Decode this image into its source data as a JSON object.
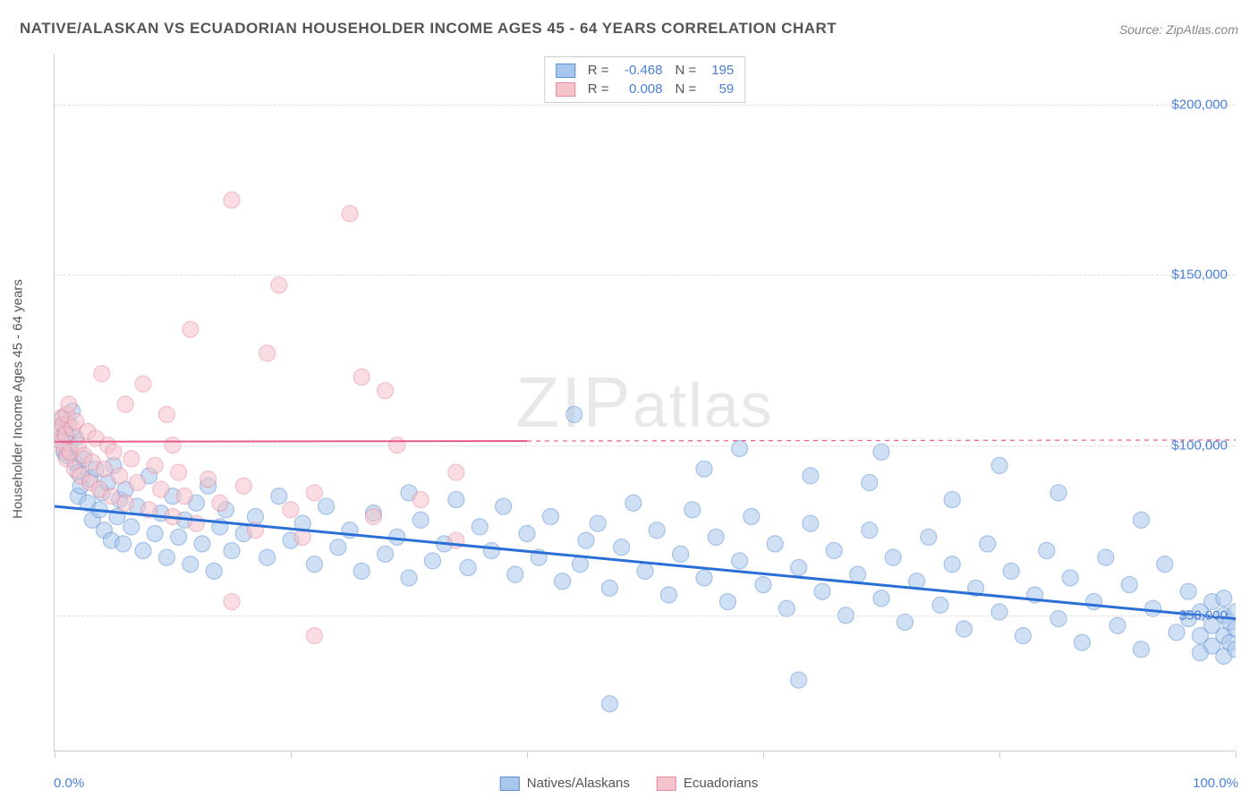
{
  "title": "NATIVE/ALASKAN VS ECUADORIAN HOUSEHOLDER INCOME AGES 45 - 64 YEARS CORRELATION CHART",
  "source": "Source: ZipAtlas.com",
  "watermark": "ZIPatlas",
  "chart": {
    "type": "scatter",
    "y_title": "Householder Income Ages 45 - 64 years",
    "xlim": [
      0,
      100
    ],
    "ylim": [
      10000,
      215000
    ],
    "x_ticks": [
      0,
      20,
      40,
      60,
      80,
      100
    ],
    "x_tick_labels": {
      "0": "0.0%",
      "100": "100.0%"
    },
    "y_ticks": [
      50000,
      100000,
      150000,
      200000
    ],
    "y_tick_labels": [
      "$50,000",
      "$100,000",
      "$150,000",
      "$200,000"
    ],
    "grid_color": "#dddddd",
    "background_color": "#ffffff",
    "axis_label_color": "#4a7fd8",
    "marker_radius": 9,
    "marker_opacity": 0.55,
    "series": [
      {
        "name": "Natives/Alaskans",
        "fill_color": "#a9c7ec",
        "stroke_color": "#5a8fd6",
        "trend": {
          "x1": 0,
          "y1": 82000,
          "x2": 100,
          "y2": 49000,
          "color": "#2a6fd6",
          "width": 3,
          "dash_after_x": 100
        },
        "stats": {
          "R": "-0.468",
          "N": "195"
        },
        "points": [
          [
            0.5,
            105000
          ],
          [
            0.6,
            101000
          ],
          [
            0.7,
            108000
          ],
          [
            0.8,
            98000
          ],
          [
            0.9,
            104000
          ],
          [
            1,
            97000
          ],
          [
            1,
            103000
          ],
          [
            1.1,
            99000
          ],
          [
            1.2,
            106000
          ],
          [
            1.3,
            100000
          ],
          [
            1.5,
            110000
          ],
          [
            1.7,
            95000
          ],
          [
            1.8,
            102000
          ],
          [
            2,
            92000
          ],
          [
            2,
            85000
          ],
          [
            2.2,
            88000
          ],
          [
            2.5,
            96000
          ],
          [
            2.8,
            83000
          ],
          [
            3,
            90000
          ],
          [
            3.2,
            78000
          ],
          [
            3.5,
            93000
          ],
          [
            3.8,
            81000
          ],
          [
            4,
            86000
          ],
          [
            4.2,
            75000
          ],
          [
            4.5,
            89000
          ],
          [
            4.8,
            72000
          ],
          [
            5,
            94000
          ],
          [
            5.3,
            79000
          ],
          [
            5.5,
            84000
          ],
          [
            5.8,
            71000
          ],
          [
            6,
            87000
          ],
          [
            6.5,
            76000
          ],
          [
            7,
            82000
          ],
          [
            7.5,
            69000
          ],
          [
            8,
            91000
          ],
          [
            8.5,
            74000
          ],
          [
            9,
            80000
          ],
          [
            9.5,
            67000
          ],
          [
            10,
            85000
          ],
          [
            10.5,
            73000
          ],
          [
            11,
            78000
          ],
          [
            11.5,
            65000
          ],
          [
            12,
            83000
          ],
          [
            12.5,
            71000
          ],
          [
            13,
            88000
          ],
          [
            13.5,
            63000
          ],
          [
            14,
            76000
          ],
          [
            14.5,
            81000
          ],
          [
            15,
            69000
          ],
          [
            16,
            74000
          ],
          [
            17,
            79000
          ],
          [
            18,
            67000
          ],
          [
            19,
            85000
          ],
          [
            20,
            72000
          ],
          [
            21,
            77000
          ],
          [
            22,
            65000
          ],
          [
            23,
            82000
          ],
          [
            24,
            70000
          ],
          [
            25,
            75000
          ],
          [
            26,
            63000
          ],
          [
            27,
            80000
          ],
          [
            28,
            68000
          ],
          [
            29,
            73000
          ],
          [
            30,
            61000
          ],
          [
            30,
            86000
          ],
          [
            31,
            78000
          ],
          [
            32,
            66000
          ],
          [
            33,
            71000
          ],
          [
            34,
            84000
          ],
          [
            35,
            64000
          ],
          [
            36,
            76000
          ],
          [
            37,
            69000
          ],
          [
            38,
            82000
          ],
          [
            39,
            62000
          ],
          [
            40,
            74000
          ],
          [
            41,
            67000
          ],
          [
            42,
            79000
          ],
          [
            43,
            60000
          ],
          [
            44,
            109000
          ],
          [
            45,
            72000
          ],
          [
            44.5,
            65000
          ],
          [
            46,
            77000
          ],
          [
            47,
            58000
          ],
          [
            47,
            24000
          ],
          [
            48,
            70000
          ],
          [
            49,
            83000
          ],
          [
            50,
            63000
          ],
          [
            51,
            75000
          ],
          [
            52,
            56000
          ],
          [
            53,
            68000
          ],
          [
            54,
            81000
          ],
          [
            55,
            61000
          ],
          [
            55,
            93000
          ],
          [
            56,
            73000
          ],
          [
            57,
            54000
          ],
          [
            58,
            99000
          ],
          [
            58,
            66000
          ],
          [
            59,
            79000
          ],
          [
            60,
            59000
          ],
          [
            61,
            71000
          ],
          [
            62,
            52000
          ],
          [
            63,
            64000
          ],
          [
            63,
            31000
          ],
          [
            64,
            91000
          ],
          [
            64,
            77000
          ],
          [
            65,
            57000
          ],
          [
            66,
            69000
          ],
          [
            67,
            50000
          ],
          [
            68,
            62000
          ],
          [
            69,
            89000
          ],
          [
            69,
            75000
          ],
          [
            70,
            55000
          ],
          [
            70,
            98000
          ],
          [
            71,
            67000
          ],
          [
            72,
            48000
          ],
          [
            73,
            60000
          ],
          [
            74,
            73000
          ],
          [
            75,
            53000
          ],
          [
            76,
            84000
          ],
          [
            76,
            65000
          ],
          [
            77,
            46000
          ],
          [
            78,
            58000
          ],
          [
            79,
            71000
          ],
          [
            80,
            51000
          ],
          [
            80,
            94000
          ],
          [
            81,
            63000
          ],
          [
            82,
            44000
          ],
          [
            83,
            56000
          ],
          [
            84,
            69000
          ],
          [
            85,
            49000
          ],
          [
            85,
            86000
          ],
          [
            86,
            61000
          ],
          [
            87,
            42000
          ],
          [
            88,
            54000
          ],
          [
            89,
            67000
          ],
          [
            90,
            47000
          ],
          [
            91,
            59000
          ],
          [
            92,
            40000
          ],
          [
            92,
            78000
          ],
          [
            93,
            52000
          ],
          [
            94,
            65000
          ],
          [
            95,
            45000
          ],
          [
            96,
            57000
          ],
          [
            96,
            49000
          ],
          [
            97,
            44000
          ],
          [
            97,
            51000
          ],
          [
            97,
            39000
          ],
          [
            98,
            54000
          ],
          [
            98,
            47000
          ],
          [
            98,
            41000
          ],
          [
            99,
            50000
          ],
          [
            99,
            44000
          ],
          [
            99,
            55000
          ],
          [
            99,
            38000
          ],
          [
            99.5,
            48000
          ],
          [
            99.5,
            42000
          ],
          [
            100,
            46000
          ],
          [
            100,
            51000
          ],
          [
            100,
            40000
          ]
        ]
      },
      {
        "name": "Ecuadorians",
        "fill_color": "#f5c3cc",
        "stroke_color": "#e88a9e",
        "trend": {
          "x1": 0,
          "y1": 101000,
          "x2": 100,
          "y2": 101500,
          "color": "#e75d8a",
          "width": 2,
          "dash_after_x": 40
        },
        "stats": {
          "R": "0.008",
          "N": "59"
        },
        "points": [
          [
            0.3,
            104000
          ],
          [
            0.5,
            108000
          ],
          [
            0.6,
            101000
          ],
          [
            0.7,
            106000
          ],
          [
            0.8,
            99000
          ],
          [
            0.9,
            103000
          ],
          [
            1,
            109000
          ],
          [
            1,
            96000
          ],
          [
            1.2,
            112000
          ],
          [
            1.3,
            98000
          ],
          [
            1.5,
            105000
          ],
          [
            1.7,
            93000
          ],
          [
            1.8,
            107000
          ],
          [
            2,
            100000
          ],
          [
            2.2,
            91000
          ],
          [
            2.5,
            97000
          ],
          [
            2.8,
            104000
          ],
          [
            3,
            89000
          ],
          [
            3.2,
            95000
          ],
          [
            3.5,
            102000
          ],
          [
            3.8,
            87000
          ],
          [
            4,
            121000
          ],
          [
            4.2,
            93000
          ],
          [
            4.5,
            100000
          ],
          [
            4.8,
            85000
          ],
          [
            5,
            98000
          ],
          [
            5.5,
            91000
          ],
          [
            6,
            112000
          ],
          [
            6,
            83000
          ],
          [
            6.5,
            96000
          ],
          [
            7,
            89000
          ],
          [
            7.5,
            118000
          ],
          [
            8,
            81000
          ],
          [
            8.5,
            94000
          ],
          [
            9,
            87000
          ],
          [
            9.5,
            109000
          ],
          [
            10,
            79000
          ],
          [
            10,
            100000
          ],
          [
            10.5,
            92000
          ],
          [
            11,
            85000
          ],
          [
            11.5,
            134000
          ],
          [
            12,
            77000
          ],
          [
            13,
            90000
          ],
          [
            14,
            83000
          ],
          [
            15,
            54000
          ],
          [
            15,
            172000
          ],
          [
            16,
            88000
          ],
          [
            17,
            75000
          ],
          [
            18,
            127000
          ],
          [
            19,
            147000
          ],
          [
            20,
            81000
          ],
          [
            21,
            73000
          ],
          [
            22,
            86000
          ],
          [
            25,
            168000
          ],
          [
            26,
            120000
          ],
          [
            27,
            79000
          ],
          [
            28,
            116000
          ],
          [
            29,
            100000
          ],
          [
            31,
            84000
          ],
          [
            34,
            72000
          ],
          [
            34,
            92000
          ],
          [
            22,
            44000
          ]
        ]
      }
    ]
  },
  "legend_bottom": [
    "Natives/Alaskans",
    "Ecuadorians"
  ]
}
